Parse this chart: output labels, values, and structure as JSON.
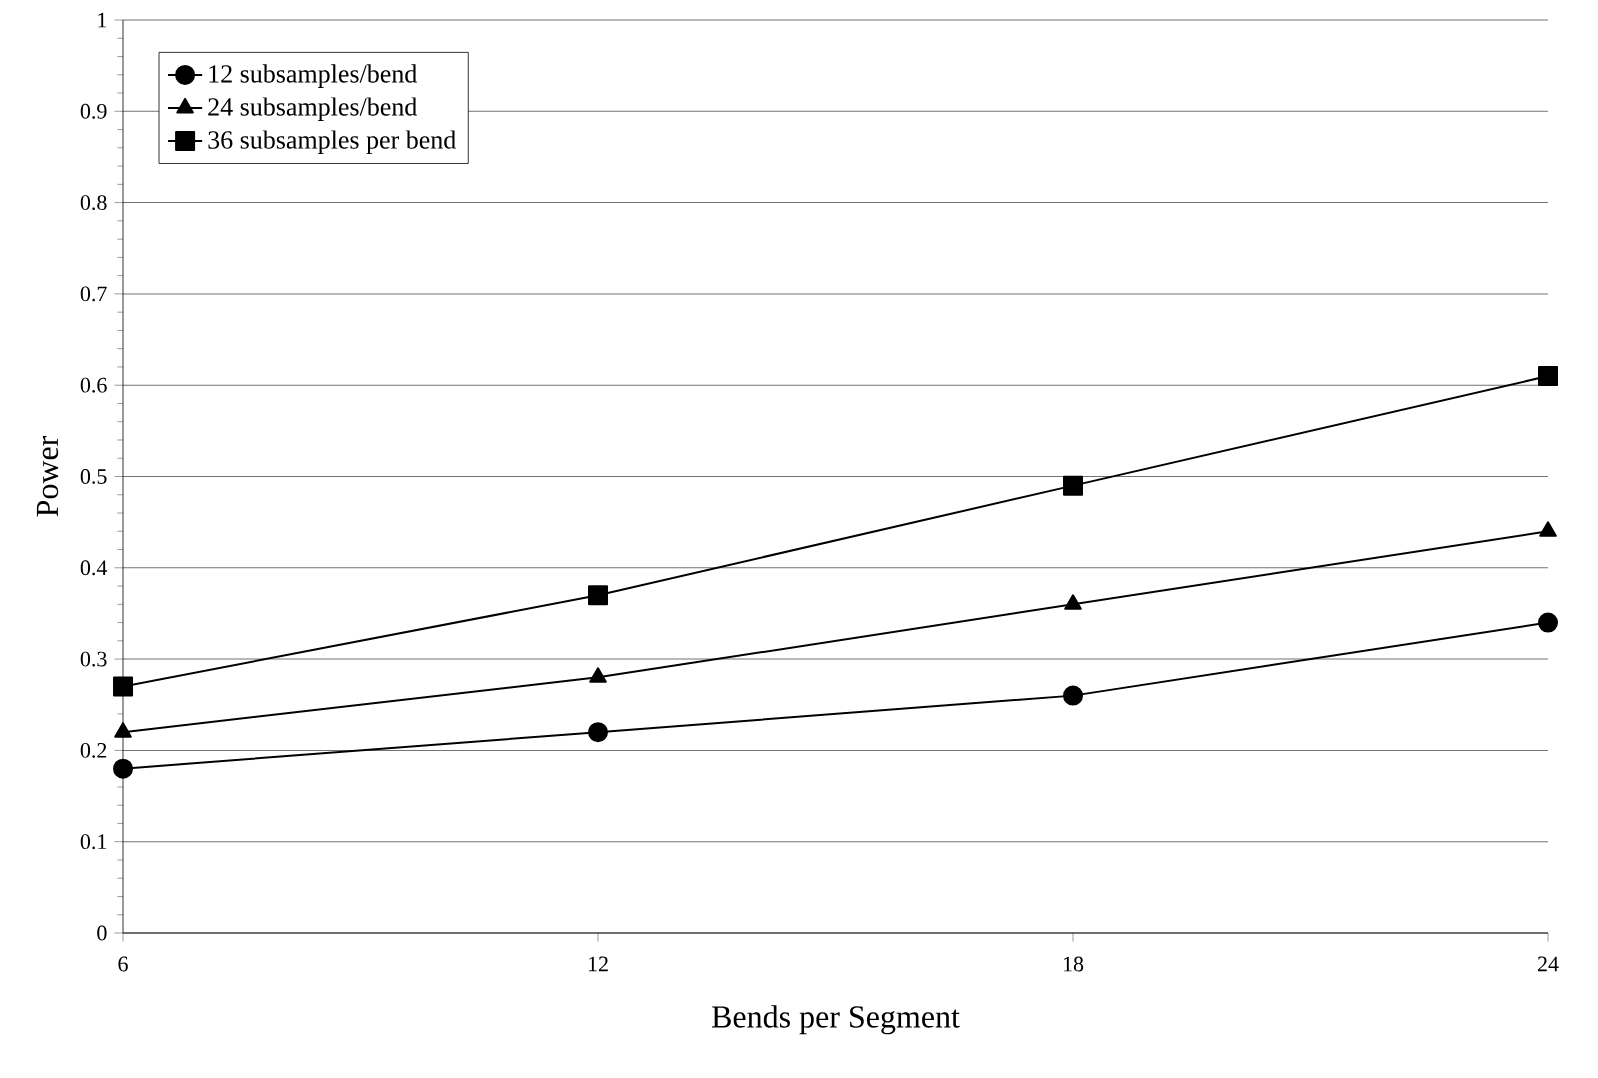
{
  "chart_data": {
    "type": "line",
    "xlabel": "Bends per Segment",
    "ylabel": "Power",
    "x": [
      6,
      12,
      18,
      24
    ],
    "xlim": [
      6,
      24
    ],
    "xticks": [
      6,
      12,
      18,
      24
    ],
    "ylim": [
      0,
      1
    ],
    "yticks": [
      0,
      0.1,
      0.2,
      0.3,
      0.4,
      0.5,
      0.6,
      0.7,
      0.8,
      0.9,
      1
    ],
    "grid": "y",
    "legend": "top left",
    "line_style": "solid",
    "series": [
      {
        "name": "12 subsamples/bend",
        "color": "#000000",
        "marker": "circle",
        "values": [
          0.18,
          0.22,
          0.26,
          0.34
        ]
      },
      {
        "name": "24 subsamples/bend",
        "color": "#000000",
        "marker": "triangle",
        "values": [
          0.22,
          0.28,
          0.36,
          0.44
        ]
      },
      {
        "name": "36 subsamples per bend",
        "color": "#000000",
        "marker": "square",
        "values": [
          0.27,
          0.37,
          0.49,
          0.61
        ]
      }
    ]
  }
}
